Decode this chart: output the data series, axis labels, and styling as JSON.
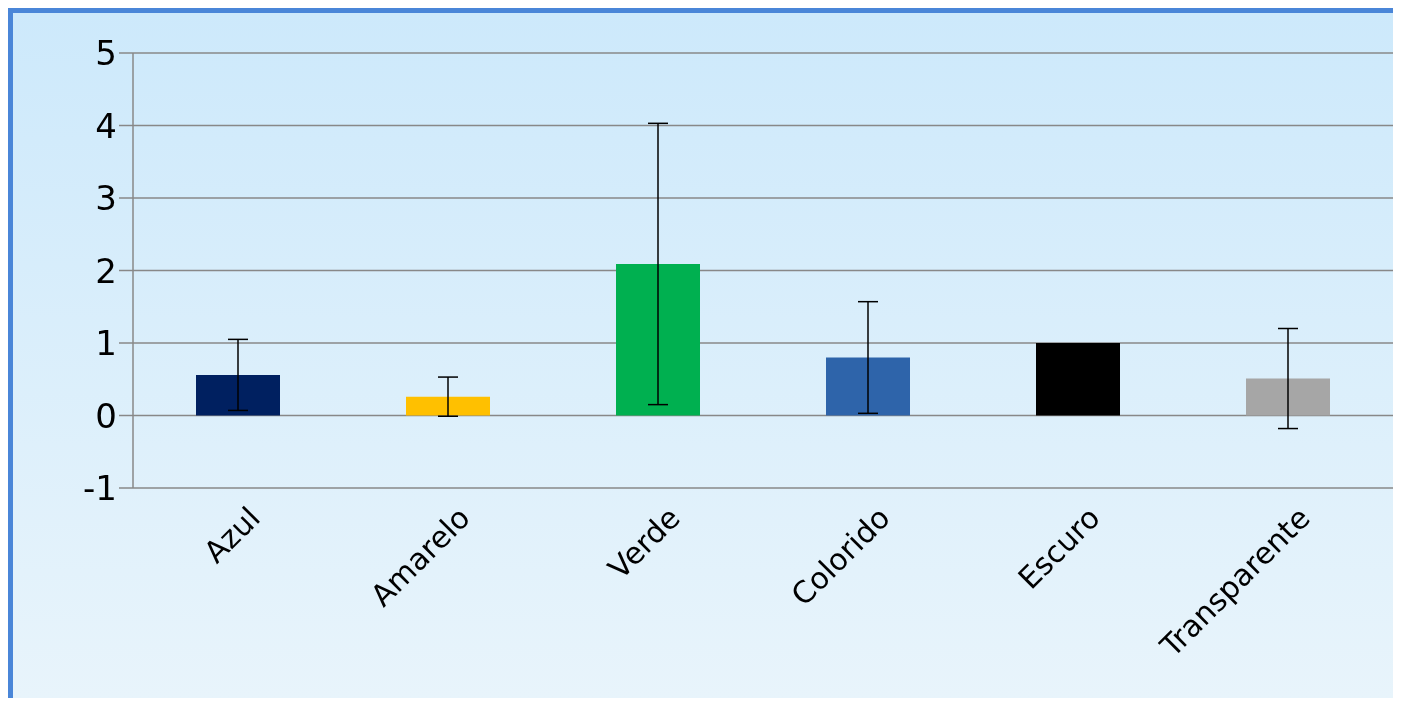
{
  "chart_data": {
    "type": "bar",
    "categories": [
      "Azul",
      "Amarelo",
      "Verde",
      "Colorido",
      "Escuro",
      "Transparente"
    ],
    "values": [
      0.56,
      0.26,
      2.09,
      0.8,
      1.0,
      0.51
    ],
    "colors": [
      "#002060",
      "#ffc000",
      "#00b050",
      "#2e64aa",
      "#000000",
      "#a6a6a6"
    ],
    "errors": [
      0.49,
      0.27,
      1.94,
      0.77,
      0,
      0.69
    ],
    "ylim": [
      -1,
      5
    ],
    "yticks": [
      -1,
      0,
      1,
      2,
      3,
      4,
      5
    ],
    "grid": "y"
  }
}
